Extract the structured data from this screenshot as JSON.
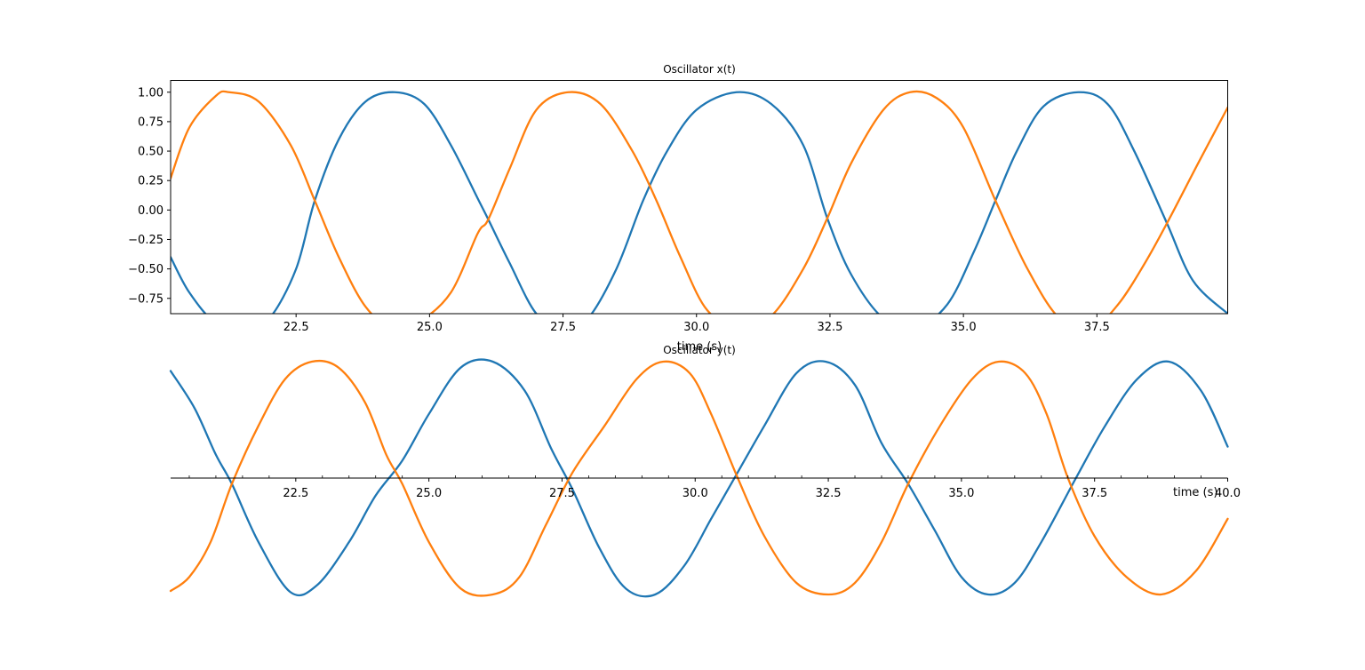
{
  "figure": {
    "background": "#ffffff"
  },
  "chart_data": [
    {
      "type": "line",
      "title": "Oscillator x(t)",
      "xlabel": "time (s)",
      "ylabel": "",
      "xlim": [
        20.15,
        39.95
      ],
      "ylim": [
        -0.88,
        1.1
      ],
      "xticks": [
        22.5,
        25.0,
        27.5,
        30.0,
        32.5,
        35.0,
        37.5
      ],
      "xtick_labels": [
        "22.5",
        "25.0",
        "27.5",
        "30.0",
        "32.5",
        "35.0",
        "37.5"
      ],
      "yticks": [
        -0.75,
        -0.5,
        -0.25,
        0.0,
        0.25,
        0.5,
        0.75,
        1.0
      ],
      "ytick_labels": [
        "−0.75",
        "−0.50",
        "−0.25",
        "0.00",
        "0.25",
        "0.50",
        "0.75",
        "1.00"
      ],
      "axes_style": "boxed",
      "grid": false,
      "legend": "none",
      "series": [
        {
          "color": "#1f77b4",
          "x": [
            20.15,
            20.5,
            21.0,
            21.55,
            22.0,
            22.5,
            22.85,
            23.3,
            23.8,
            24.35,
            24.9,
            25.4,
            25.9,
            26.1,
            26.5,
            27.0,
            27.5,
            27.95,
            28.5,
            29.0,
            29.45,
            30.0,
            30.75,
            31.4,
            32.0,
            32.45,
            32.9,
            33.5,
            34.1,
            34.7,
            35.2,
            35.6,
            36.0,
            36.5,
            37.15,
            37.7,
            38.2,
            38.8,
            39.3,
            39.95
          ],
          "y": [
            -0.4,
            -0.7,
            -0.96,
            -1.0,
            -0.92,
            -0.5,
            0.08,
            0.6,
            0.92,
            1.0,
            0.9,
            0.55,
            0.1,
            -0.08,
            -0.45,
            -0.88,
            -1.0,
            -0.93,
            -0.5,
            0.08,
            0.5,
            0.85,
            1.0,
            0.9,
            0.55,
            -0.07,
            -0.55,
            -0.92,
            -1.0,
            -0.8,
            -0.35,
            0.08,
            0.5,
            0.88,
            1.0,
            0.9,
            0.5,
            -0.1,
            -0.6,
            -0.88
          ]
        },
        {
          "color": "#ff7f0e",
          "x": [
            20.15,
            20.5,
            21.0,
            21.25,
            21.8,
            22.4,
            22.85,
            23.3,
            23.8,
            24.3,
            24.8,
            25.4,
            25.9,
            26.1,
            26.5,
            27.0,
            27.6,
            28.2,
            28.8,
            29.25,
            29.7,
            30.2,
            30.8,
            31.4,
            32.0,
            32.45,
            32.9,
            33.5,
            34.0,
            34.5,
            35.0,
            35.6,
            36.2,
            36.8,
            37.4,
            37.9,
            38.4,
            38.85,
            39.4,
            39.95
          ],
          "y": [
            0.27,
            0.7,
            0.97,
            1.0,
            0.92,
            0.55,
            0.08,
            -0.4,
            -0.82,
            -1.0,
            -0.95,
            -0.7,
            -0.2,
            -0.08,
            0.35,
            0.85,
            1.0,
            0.9,
            0.5,
            0.08,
            -0.4,
            -0.85,
            -1.0,
            -0.9,
            -0.5,
            -0.07,
            0.4,
            0.85,
            1.0,
            0.95,
            0.7,
            0.08,
            -0.5,
            -0.92,
            -1.0,
            -0.8,
            -0.45,
            -0.08,
            0.4,
            0.87
          ]
        }
      ]
    },
    {
      "type": "line",
      "title": "Oscillator y(t)",
      "xlabel": "time (s)",
      "ylabel": "",
      "xlim": [
        20.15,
        40.0
      ],
      "ylim": [
        -1.0,
        1.0
      ],
      "xticks": [
        22.5,
        25.0,
        27.5,
        30.0,
        32.5,
        35.0,
        37.5,
        40.0
      ],
      "xtick_labels": [
        "22.5",
        "25.0",
        "27.5",
        "30.0",
        "32.5",
        "35.0",
        "37.5",
        "40.0"
      ],
      "axes_style": "centered spine at y = 0, minor ticks",
      "grid": false,
      "legend": "none",
      "series": [
        {
          "color": "#1f77b4",
          "x": [
            20.15,
            20.6,
            21.0,
            21.3,
            21.8,
            22.4,
            22.9,
            23.5,
            24.0,
            24.5,
            25.0,
            25.6,
            26.2,
            26.8,
            27.3,
            27.7,
            28.2,
            28.7,
            29.25,
            29.8,
            30.3,
            30.8,
            31.3,
            31.9,
            32.45,
            33.0,
            33.5,
            34.0,
            34.5,
            35.0,
            35.5,
            36.0,
            36.5,
            37.15,
            37.7,
            38.3,
            38.9,
            39.5,
            40.0
          ],
          "y": [
            0.92,
            0.6,
            0.2,
            -0.05,
            -0.55,
            -0.98,
            -0.92,
            -0.55,
            -0.15,
            0.15,
            0.55,
            0.95,
            1.0,
            0.75,
            0.25,
            -0.1,
            -0.6,
            -0.95,
            -1.0,
            -0.75,
            -0.35,
            0.05,
            0.45,
            0.9,
            1.0,
            0.8,
            0.3,
            -0.05,
            -0.45,
            -0.85,
            -1.0,
            -0.9,
            -0.55,
            0.0,
            0.45,
            0.85,
            1.0,
            0.75,
            0.27
          ]
        },
        {
          "color": "#ff7f0e",
          "x": [
            20.15,
            20.5,
            20.9,
            21.3,
            21.8,
            22.3,
            22.8,
            23.3,
            23.8,
            24.2,
            24.5,
            25.0,
            25.6,
            26.2,
            26.7,
            27.2,
            27.7,
            28.3,
            28.9,
            29.4,
            29.9,
            30.3,
            30.8,
            31.3,
            31.9,
            32.5,
            33.0,
            33.5,
            34.0,
            34.6,
            35.2,
            35.7,
            36.2,
            36.6,
            37.0,
            37.5,
            38.1,
            38.75,
            39.4,
            40.0
          ],
          "y": [
            -0.97,
            -0.85,
            -0.55,
            -0.05,
            0.45,
            0.85,
            1.0,
            0.95,
            0.65,
            0.2,
            -0.05,
            -0.55,
            -0.95,
            -1.0,
            -0.85,
            -0.4,
            0.05,
            0.45,
            0.85,
            1.0,
            0.9,
            0.55,
            0.0,
            -0.5,
            -0.9,
            -1.0,
            -0.9,
            -0.55,
            -0.05,
            0.45,
            0.85,
            1.0,
            0.9,
            0.55,
            0.0,
            -0.5,
            -0.85,
            -1.0,
            -0.8,
            -0.35
          ]
        }
      ]
    }
  ]
}
